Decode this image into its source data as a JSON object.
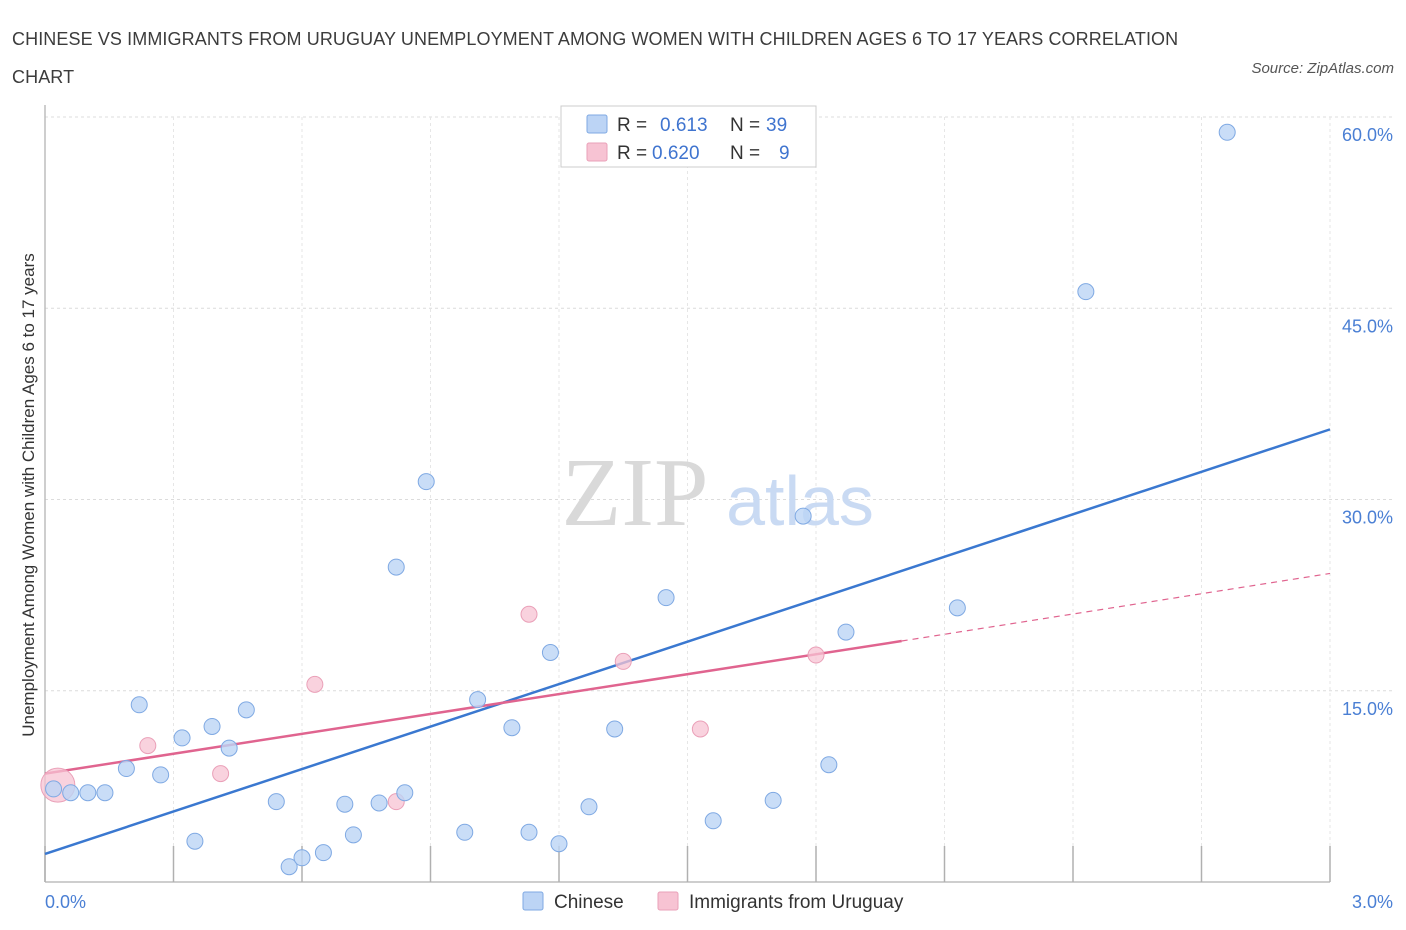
{
  "title": "CHINESE VS IMMIGRANTS FROM URUGUAY UNEMPLOYMENT AMONG WOMEN WITH CHILDREN AGES 6 TO 17 YEARS CORRELATION CHART",
  "source": "Source: ZipAtlas.com",
  "watermark": {
    "zip": "ZIP",
    "atlas": "atlas"
  },
  "colors": {
    "chinese": "#4a86d8",
    "chinese_fill": "#bcd4f5",
    "uruguay": "#e0648f",
    "uruguay_fill": "#f7c3d3"
  },
  "legend_top": [
    {
      "r_label": "R =",
      "r_value": "0.613",
      "n_label": "N =",
      "n_value": "39"
    },
    {
      "r_label": "R =",
      "r_value": "0.620",
      "n_label": "N =",
      "n_value": "9"
    }
  ],
  "legend_bottom": [
    "Chinese",
    "Immigrants from Uruguay"
  ],
  "chart_data": {
    "type": "scatter",
    "title": "CHINESE VS IMMIGRANTS FROM URUGUAY UNEMPLOYMENT AMONG WOMEN WITH CHILDREN AGES 6 TO 17 YEARS CORRELATION CHART",
    "xlabel": "",
    "ylabel": "Unemployment Among Women with Children Ages 6 to 17 years",
    "xlim": [
      0,
      3.0
    ],
    "ylim": [
      0,
      60
    ],
    "x_ticks": [
      "0.0%",
      "3.0%"
    ],
    "y_ticks": [
      {
        "value": 15,
        "label": "15.0%"
      },
      {
        "value": 30,
        "label": "30.0%"
      },
      {
        "value": 45,
        "label": "45.0%"
      },
      {
        "value": 60,
        "label": "60.0%"
      }
    ],
    "grid": true,
    "legend_position": "top-center",
    "series": [
      {
        "name": "Chinese",
        "r": 0.613,
        "n": 39,
        "points": [
          [
            0.02,
            7.3
          ],
          [
            0.06,
            7.0
          ],
          [
            0.1,
            7.0
          ],
          [
            0.14,
            7.0
          ],
          [
            0.19,
            8.9
          ],
          [
            0.22,
            13.9
          ],
          [
            0.27,
            8.4
          ],
          [
            0.32,
            11.3
          ],
          [
            0.35,
            3.2
          ],
          [
            0.39,
            12.2
          ],
          [
            0.43,
            10.5
          ],
          [
            0.47,
            13.5
          ],
          [
            0.54,
            6.3
          ],
          [
            0.57,
            1.2
          ],
          [
            0.6,
            1.9
          ],
          [
            0.65,
            2.3
          ],
          [
            0.7,
            6.1
          ],
          [
            0.72,
            3.7
          ],
          [
            0.78,
            6.2
          ],
          [
            0.82,
            24.7
          ],
          [
            0.84,
            7.0
          ],
          [
            0.89,
            31.4
          ],
          [
            0.98,
            3.9
          ],
          [
            1.01,
            14.3
          ],
          [
            1.09,
            12.1
          ],
          [
            1.13,
            3.9
          ],
          [
            1.18,
            18.0
          ],
          [
            1.2,
            3.0
          ],
          [
            1.27,
            5.9
          ],
          [
            1.33,
            12.0
          ],
          [
            1.45,
            22.3
          ],
          [
            1.56,
            4.8
          ],
          [
            1.7,
            6.4
          ],
          [
            1.77,
            28.7
          ],
          [
            1.83,
            9.2
          ],
          [
            1.87,
            19.6
          ],
          [
            2.13,
            21.5
          ],
          [
            2.43,
            46.3
          ],
          [
            2.76,
            58.8
          ]
        ],
        "trend": [
          [
            0.0,
            2.2
          ],
          [
            3.0,
            35.5
          ]
        ]
      },
      {
        "name": "Immigrants from Uruguay",
        "r": 0.62,
        "n": 9,
        "points": [
          [
            0.03,
            7.6
          ],
          [
            0.24,
            10.7
          ],
          [
            0.41,
            8.5
          ],
          [
            0.63,
            15.5
          ],
          [
            0.82,
            6.3
          ],
          [
            1.13,
            21.0
          ],
          [
            1.35,
            17.3
          ],
          [
            1.53,
            12.0
          ],
          [
            1.8,
            17.8
          ]
        ],
        "trend": [
          [
            0.0,
            8.5
          ],
          [
            2.0,
            18.9
          ]
        ],
        "trend_extension": [
          [
            2.0,
            18.9
          ],
          [
            3.0,
            24.2
          ]
        ]
      }
    ]
  }
}
